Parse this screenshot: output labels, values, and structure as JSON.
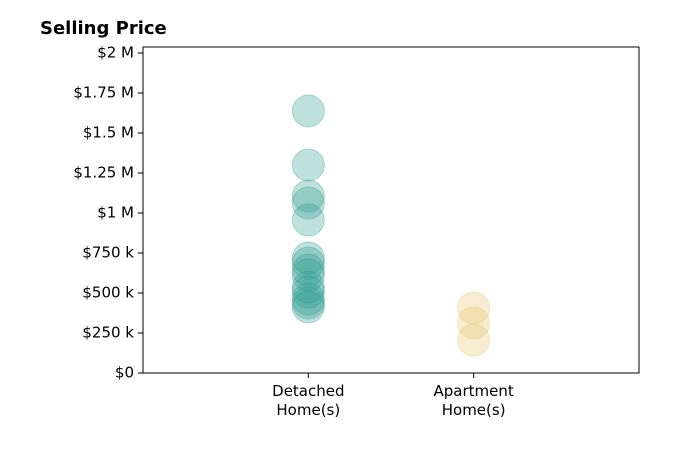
{
  "chart_data": {
    "type": "strip",
    "title": "Selling Price",
    "categories": [
      "Detached\nHome(s)",
      "Apartment\nHome(s)"
    ],
    "values": [
      [
        1637500,
        1300000,
        1106000,
        1062500,
        956000,
        719000,
        687500,
        644000,
        612500,
        537500,
        506000,
        462500,
        437500,
        412500
      ],
      [
        406000,
        312500,
        206000
      ]
    ],
    "colors": [
      "#2a9d8f",
      "#e9c46a"
    ],
    "xlim": [
      0,
      3
    ],
    "ylim": [
      0,
      2037500
    ],
    "yticks": [
      {
        "value": 0,
        "label": "$0"
      },
      {
        "value": 250000,
        "label": "$250 k"
      },
      {
        "value": 500000,
        "label": "$500 k"
      },
      {
        "value": 750000,
        "label": "$750 k"
      },
      {
        "value": 1000000,
        "label": "$1 M"
      },
      {
        "value": 1250000,
        "label": "$1.25 M"
      },
      {
        "value": 1500000,
        "label": "$1.5 M"
      },
      {
        "value": 1750000,
        "label": "$1.75 M"
      },
      {
        "value": 2000000,
        "label": "$2 M"
      }
    ]
  }
}
